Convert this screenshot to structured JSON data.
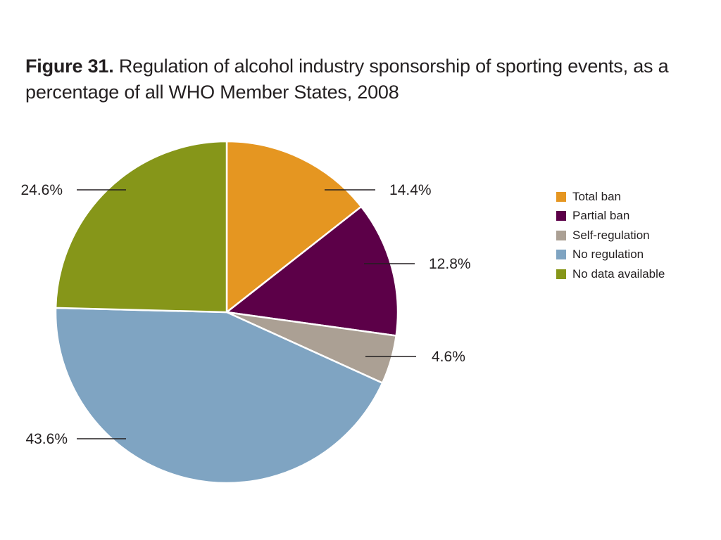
{
  "figure": {
    "label": "Figure 31.",
    "title": "Regulation of alcohol industry sponsorship of sporting events, as a percentage of all WHO Member States, 2008"
  },
  "chart_data": {
    "type": "pie",
    "title": "Figure 31. Regulation of alcohol industry sponsorship of sporting events, as a percentage of all WHO Member States, 2008",
    "unit": "%",
    "start": "12 o'clock, clockwise",
    "slices": [
      {
        "name": "Total ban",
        "value": 14.4,
        "label": "14.4%",
        "color": "#e59621"
      },
      {
        "name": "Partial ban",
        "value": 12.8,
        "label": "12.8%",
        "color": "#5c0048"
      },
      {
        "name": "Self-regulation",
        "value": 4.6,
        "label": "4.6%",
        "color": "#aba094"
      },
      {
        "name": "No regulation",
        "value": 43.6,
        "label": "43.6%",
        "color": "#7fa4c2"
      },
      {
        "name": "No data available",
        "value": 24.6,
        "label": "24.6%",
        "color": "#869619"
      }
    ],
    "legend_position": "right"
  }
}
